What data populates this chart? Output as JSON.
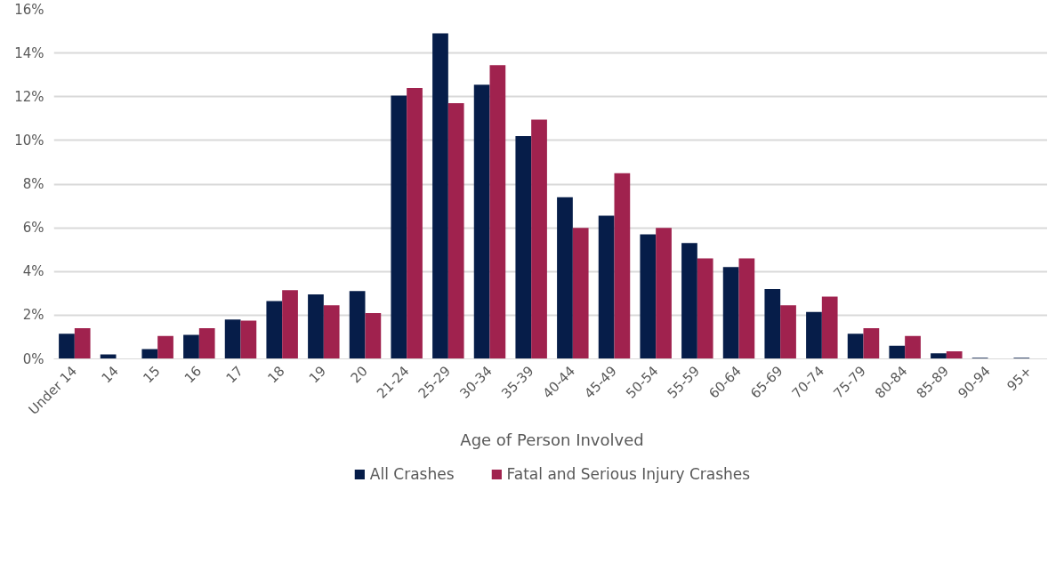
{
  "chart_data": {
    "type": "bar",
    "xlabel": "Age of Person Involved",
    "categories": [
      "Under 14",
      "14",
      "15",
      "16",
      "17",
      "18",
      "19",
      "20",
      "21-24",
      "25-29",
      "30-34",
      "35-39",
      "40-44",
      "45-49",
      "50-54",
      "55-59",
      "60-64",
      "65-69",
      "70-74",
      "75-79",
      "80-84",
      "85-89",
      "90-94",
      "95+"
    ],
    "series": [
      {
        "name": "All Crashes",
        "color": "#061d49",
        "values": [
          1.15,
          0.2,
          0.45,
          1.1,
          1.8,
          2.65,
          2.95,
          3.1,
          12.05,
          14.9,
          12.55,
          10.2,
          7.4,
          6.55,
          5.7,
          5.3,
          4.2,
          3.2,
          2.15,
          1.15,
          0.6,
          0.25,
          0.05,
          0.05
        ]
      },
      {
        "name": "Fatal and Serious Injury Crashes",
        "color": "#a0224e",
        "values": [
          1.4,
          0,
          1.05,
          1.4,
          1.75,
          3.15,
          2.45,
          2.1,
          12.4,
          11.7,
          13.45,
          10.95,
          6.0,
          8.5,
          6.0,
          4.6,
          4.6,
          2.45,
          2.85,
          1.4,
          1.05,
          0.35,
          0,
          0
        ]
      }
    ],
    "ylim": [
      0,
      16
    ],
    "yticks": [
      {
        "value": 0,
        "label": "0%"
      },
      {
        "value": 2,
        "label": "2%"
      },
      {
        "value": 4,
        "label": "4%"
      },
      {
        "value": 6,
        "label": "6%"
      },
      {
        "value": 8,
        "label": "8%"
      },
      {
        "value": 10,
        "label": "10%"
      },
      {
        "value": 12,
        "label": "12%"
      },
      {
        "value": 14,
        "label": "14%"
      },
      {
        "value": 16,
        "label": "16%"
      }
    ],
    "grid": "y",
    "legend": "bottom"
  }
}
